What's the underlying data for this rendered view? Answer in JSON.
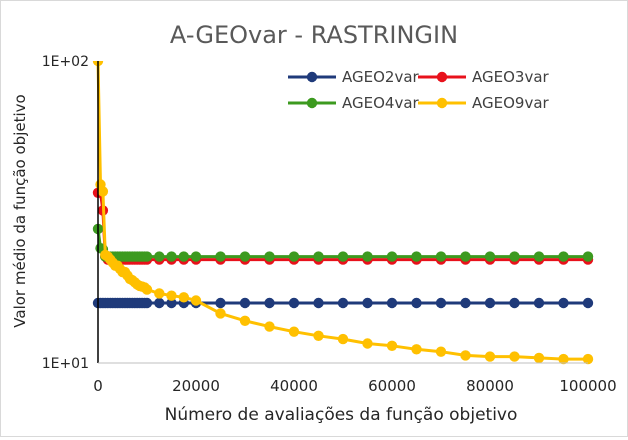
{
  "chart_data": {
    "type": "line",
    "title": "A-GEOvar - RASTRINGIN",
    "xlabel": "Número de avaliações da função objetivo",
    "ylabel": "Valor médio da função objetivo",
    "yscale": "log",
    "xlim": [
      0,
      100000
    ],
    "ylim": [
      10,
      100
    ],
    "xticks": [
      "0",
      "20000",
      "40000",
      "60000",
      "80000",
      "100000"
    ],
    "yticks": [
      "1E+01",
      "1E+02"
    ],
    "legend_position": "top-right",
    "grid": false,
    "series": [
      {
        "name": "AGEO2var",
        "color": "#1f3a7a",
        "x": [
          0,
          500,
          1000,
          1500,
          2000,
          2500,
          3000,
          3500,
          4000,
          4500,
          5000,
          5500,
          6000,
          6500,
          7000,
          7500,
          8000,
          8500,
          9000,
          9500,
          10000,
          12500,
          15000,
          17500,
          20000,
          25000,
          30000,
          35000,
          40000,
          45000,
          50000,
          55000,
          60000,
          65000,
          70000,
          75000,
          80000,
          85000,
          90000,
          95000,
          100000
        ],
        "y": [
          15.8,
          15.8,
          15.8,
          15.8,
          15.8,
          15.8,
          15.8,
          15.8,
          15.8,
          15.8,
          15.8,
          15.8,
          15.8,
          15.8,
          15.8,
          15.8,
          15.8,
          15.8,
          15.8,
          15.8,
          15.8,
          15.8,
          15.8,
          15.8,
          15.8,
          15.8,
          15.8,
          15.8,
          15.8,
          15.8,
          15.8,
          15.8,
          15.8,
          15.8,
          15.8,
          15.8,
          15.8,
          15.8,
          15.8,
          15.8,
          15.8
        ]
      },
      {
        "name": "AGEO3var",
        "color": "#e8111b",
        "x": [
          0,
          500,
          1000,
          1500,
          2000,
          2500,
          3000,
          3500,
          4000,
          4500,
          5000,
          5500,
          6000,
          6500,
          7000,
          7500,
          8000,
          8500,
          9000,
          9500,
          10000,
          12500,
          15000,
          17500,
          20000,
          25000,
          30000,
          35000,
          40000,
          45000,
          50000,
          55000,
          60000,
          65000,
          70000,
          75000,
          80000,
          85000,
          90000,
          95000,
          100000
        ],
        "y": [
          36.6,
          36.6,
          32.0,
          22.5,
          22.0,
          22.0,
          22.0,
          22.0,
          22.0,
          22.0,
          22.0,
          22.0,
          22.0,
          22.0,
          22.0,
          22.0,
          22.0,
          22.0,
          22.0,
          22.0,
          22.0,
          22.0,
          22.0,
          22.0,
          22.0,
          22.0,
          22.0,
          22.0,
          22.0,
          22.0,
          22.0,
          22.0,
          22.0,
          22.0,
          22.0,
          22.0,
          22.0,
          22.0,
          22.0,
          22.0,
          22.0
        ]
      },
      {
        "name": "AGEO4var",
        "color": "#3c9a1f",
        "x": [
          0,
          500,
          1000,
          1500,
          2000,
          2500,
          3000,
          3500,
          4000,
          4500,
          5000,
          5500,
          6000,
          6500,
          7000,
          7500,
          8000,
          8500,
          9000,
          9500,
          10000,
          12500,
          15000,
          17500,
          20000,
          25000,
          30000,
          35000,
          40000,
          45000,
          50000,
          55000,
          60000,
          65000,
          70000,
          75000,
          80000,
          85000,
          90000,
          95000,
          100000
        ],
        "y": [
          27.8,
          24.0,
          23.8,
          22.5,
          22.5,
          22.5,
          22.5,
          22.5,
          22.5,
          22.5,
          22.5,
          22.5,
          22.5,
          22.5,
          22.5,
          22.5,
          22.5,
          22.5,
          22.5,
          22.5,
          22.5,
          22.5,
          22.5,
          22.5,
          22.5,
          22.5,
          22.5,
          22.5,
          22.5,
          22.5,
          22.5,
          22.5,
          22.5,
          22.5,
          22.5,
          22.5,
          22.5,
          22.5,
          22.5,
          22.5,
          22.5
        ]
      },
      {
        "name": "AGEO9var",
        "color": "#ffc000",
        "x": [
          0,
          500,
          1000,
          1500,
          2000,
          2500,
          3000,
          3500,
          4000,
          4500,
          5000,
          5500,
          6000,
          6500,
          7000,
          7500,
          8000,
          8500,
          9000,
          9500,
          10000,
          12500,
          15000,
          17500,
          20000,
          25000,
          30000,
          35000,
          40000,
          45000,
          50000,
          55000,
          60000,
          65000,
          70000,
          75000,
          80000,
          85000,
          90000,
          95000,
          100000
        ],
        "y": [
          100,
          39.0,
          37.0,
          22.8,
          22.5,
          22.0,
          21.5,
          21.0,
          21.0,
          20.5,
          20.0,
          20.0,
          19.5,
          19.0,
          18.8,
          18.5,
          18.2,
          18.0,
          17.9,
          17.8,
          17.5,
          17.0,
          16.7,
          16.5,
          16.1,
          14.6,
          13.8,
          13.2,
          12.7,
          12.3,
          12.0,
          11.6,
          11.4,
          11.1,
          10.9,
          10.6,
          10.5,
          10.5,
          10.4,
          10.3,
          10.3
        ]
      }
    ]
  }
}
